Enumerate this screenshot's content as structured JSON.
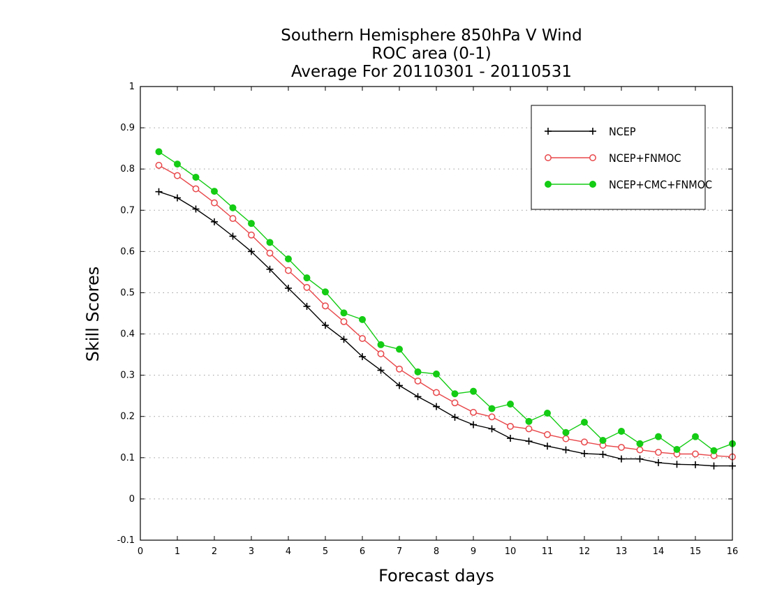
{
  "chart_data": {
    "type": "line",
    "title": [
      "Southern Hemisphere 850hPa V Wind",
      "ROC area (0-1)",
      "Average For 20110301 - 20110531"
    ],
    "xlabel": "Forecast days",
    "ylabel": "Skill Scores",
    "xlim": [
      0,
      16
    ],
    "ylim": [
      -0.1,
      1
    ],
    "x_ticks": [
      "0",
      "1",
      "2",
      "3",
      "4",
      "5",
      "6",
      "7",
      "8",
      "9",
      "10",
      "11",
      "12",
      "13",
      "14",
      "15",
      "16"
    ],
    "y_ticks": [
      "-0.1",
      "0",
      "0.1",
      "0.2",
      "0.3",
      "0.4",
      "0.5",
      "0.6",
      "0.7",
      "0.8",
      "0.9",
      "1"
    ],
    "x_tick_values": [
      0,
      1,
      2,
      3,
      4,
      5,
      6,
      7,
      8,
      9,
      10,
      11,
      12,
      13,
      14,
      15,
      16
    ],
    "y_tick_values": [
      -0.1,
      0,
      0.1,
      0.2,
      0.3,
      0.4,
      0.5,
      0.6,
      0.7,
      0.8,
      0.9,
      1
    ],
    "grid": true,
    "legend_position": "top-right",
    "x": [
      0.5,
      1,
      1.5,
      2,
      2.5,
      3,
      3.5,
      4,
      4.5,
      5,
      5.5,
      6,
      6.5,
      7,
      7.5,
      8,
      8.5,
      9,
      9.5,
      10,
      10.5,
      11,
      11.5,
      12,
      12.5,
      13,
      13.5,
      14,
      14.5,
      15,
      15.5,
      16
    ],
    "series": [
      {
        "name": "NCEP",
        "color": "#000000",
        "marker": "plus",
        "values": [
          0.745,
          0.73,
          0.703,
          0.672,
          0.637,
          0.6,
          0.557,
          0.511,
          0.467,
          0.421,
          0.387,
          0.345,
          0.312,
          0.275,
          0.248,
          0.224,
          0.198,
          0.18,
          0.17,
          0.147,
          0.14,
          0.128,
          0.119,
          0.11,
          0.108,
          0.097,
          0.097,
          0.088,
          0.084,
          0.083,
          0.08,
          0.08
        ]
      },
      {
        "name": "NCEP+FNMOC",
        "color": "#e8474a",
        "marker": "circle-open",
        "values": [
          0.809,
          0.784,
          0.752,
          0.718,
          0.68,
          0.64,
          0.596,
          0.554,
          0.513,
          0.468,
          0.43,
          0.389,
          0.352,
          0.315,
          0.286,
          0.258,
          0.233,
          0.21,
          0.199,
          0.176,
          0.17,
          0.156,
          0.146,
          0.138,
          0.13,
          0.125,
          0.119,
          0.113,
          0.109,
          0.109,
          0.105,
          0.102
        ]
      },
      {
        "name": "NCEP+CMC+FNMOC",
        "color": "#14cc14",
        "marker": "circle-filled",
        "values": [
          0.842,
          0.812,
          0.78,
          0.746,
          0.706,
          0.668,
          0.622,
          0.582,
          0.536,
          0.502,
          0.451,
          0.435,
          0.374,
          0.363,
          0.308,
          0.303,
          0.255,
          0.261,
          0.219,
          0.23,
          0.188,
          0.208,
          0.161,
          0.186,
          0.142,
          0.164,
          0.134,
          0.151,
          0.12,
          0.151,
          0.117,
          0.134
        ]
      }
    ]
  }
}
